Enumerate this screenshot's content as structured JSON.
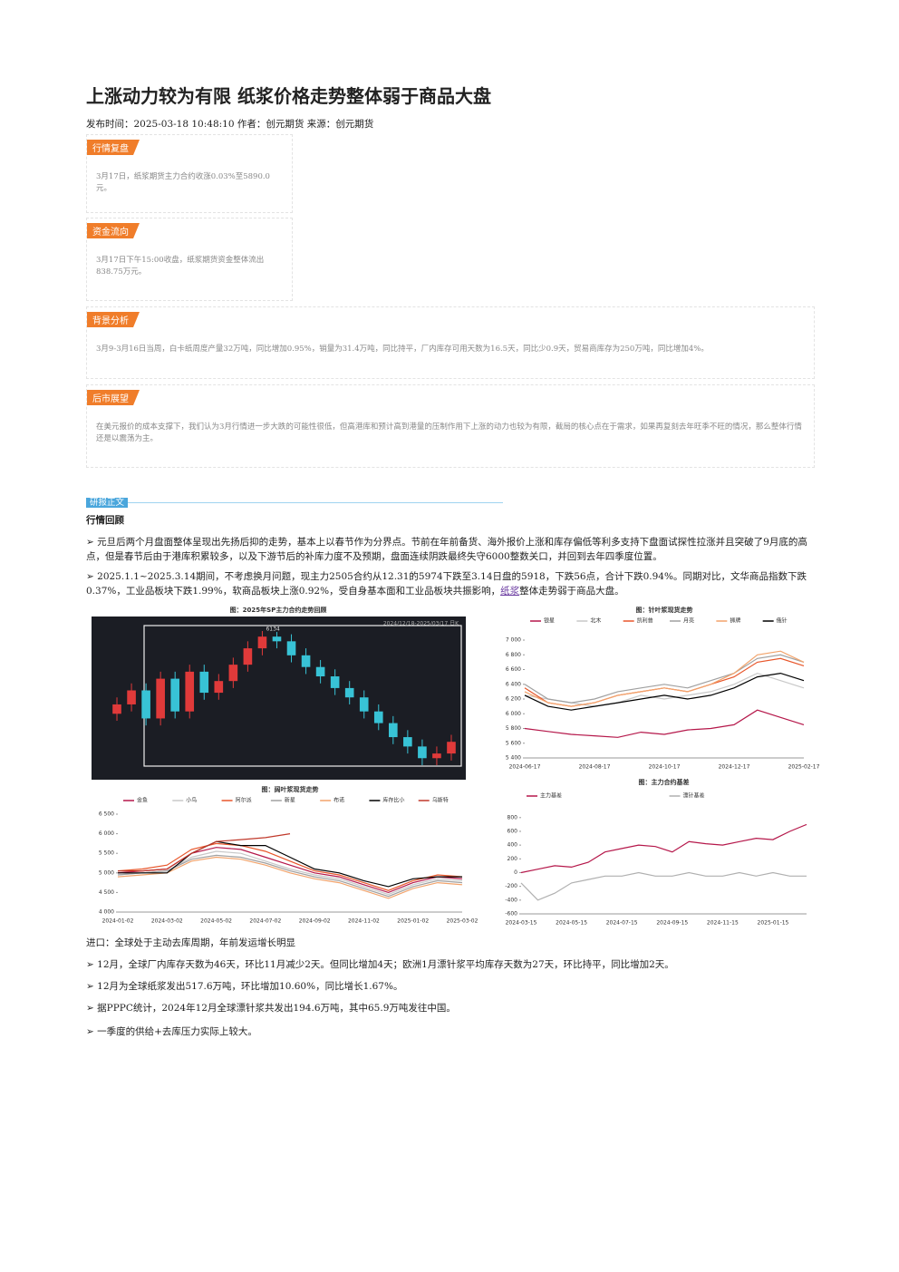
{
  "header": {
    "title": "上涨动力较为有限 纸浆价格走势整体弱于商品大盘",
    "meta": "发布时间：2025-03-18 10:48:10 作者：创元期货 来源：创元期货"
  },
  "sections": [
    {
      "tag": "行情复盘",
      "text": "3月17日，纸浆期货主力合约收涨0.03%至5890.0元。"
    },
    {
      "tag": "资金流向",
      "text": "3月17日下午15:00收盘，纸浆期货资金整体流出838.75万元。"
    },
    {
      "tag": "背景分析",
      "text": "3月9-3月16日当周，白卡纸周度产量32万吨，同比增加0.95%，销量为31.4万吨，同比持平，厂内库存可用天数为16.5天，同比少0.9天，贸易商库存为250万吨，同比增加4%。"
    },
    {
      "tag": "后市展望",
      "text": "在美元报价的成本支撑下，我们认为3月行情进一步大跌的可能性很低，但高港库和预计高到港量的压制作用下上涨的动力也较为有限，截局的核心点在于需求，如果再复刻去年旺季不旺的情况，那么整体行情还是以震荡为主。"
    }
  ],
  "body": {
    "tag": "研报正文",
    "heading": "行情回顾",
    "p1": "➢ 元旦后两个月盘面整体呈现出先扬后抑的走势，基本上以春节作为分界点。节前在年前备货、海外报价上涨和库存偏低等利多支持下盘面试探性拉涨并且突破了9月底的高点，但是春节后由于港库积累较多，以及下游节后的补库力度不及预期，盘面连续阴跌最终失守6000整数关口，并回到去年四季度位置。",
    "p2_before": "➢ 2025.1.1~2025.3.14期间，不考虑换月问题，现主力2505合约从12.31的5974下跌至3.14日盘的5918，下跌56点，合计下跌0.94%。同期对比，文华商品指数下跌0.37%，工业品板块下跌1.99%，软商品板块上涨0.92%，受自身基本面和工业品板块共振影响，",
    "p2_link": "纸浆",
    "p2_after": "整体走势弱于商品大盘。"
  },
  "chart_data": [
    {
      "type": "candlestick",
      "title": "图：2025年SP主力合约走势回顾",
      "subtitle": "2024/12/18-2025/03/17 日K",
      "annotation": "6134",
      "open": [
        5780,
        5820,
        5880,
        5760,
        5930,
        5790,
        5960,
        5870,
        5920,
        5990,
        6060,
        6110,
        6090,
        6030,
        5980,
        5940,
        5890,
        5850,
        5790,
        5740,
        5680,
        5640,
        5590,
        5610
      ],
      "high": [
        5850,
        5910,
        5910,
        5960,
        5960,
        5990,
        5990,
        5950,
        6020,
        6090,
        6134,
        6130,
        6120,
        6060,
        6010,
        5970,
        5920,
        5880,
        5820,
        5770,
        5710,
        5670,
        5640,
        5690
      ],
      "low": [
        5750,
        5790,
        5730,
        5730,
        5760,
        5760,
        5840,
        5840,
        5890,
        5960,
        6030,
        6060,
        6000,
        5950,
        5910,
        5860,
        5820,
        5760,
        5710,
        5650,
        5610,
        5560,
        5560,
        5580
      ],
      "close": [
        5820,
        5880,
        5760,
        5930,
        5790,
        5960,
        5870,
        5920,
        5990,
        6060,
        6110,
        6090,
        6030,
        5980,
        5940,
        5890,
        5850,
        5790,
        5740,
        5680,
        5640,
        5590,
        5610,
        5660
      ]
    },
    {
      "type": "line",
      "title": "图：针叶浆现货走势",
      "categories": [
        "2024-06-17",
        null,
        null,
        "2024-08-17",
        null,
        null,
        "2024-10-17",
        null,
        null,
        "2024-12-17",
        null,
        null,
        "2025-02-17"
      ],
      "ylim": [
        5400,
        7000
      ],
      "yticks": [
        {
          "value": 5400,
          "label": "5 400"
        },
        {
          "value": 5600,
          "label": "5 600"
        },
        {
          "value": 5800,
          "label": "5 800"
        },
        {
          "value": 6000,
          "label": "6 000"
        },
        {
          "value": 6200,
          "label": "6 200"
        },
        {
          "value": 6400,
          "label": "6 400"
        },
        {
          "value": 6600,
          "label": "6 600"
        },
        {
          "value": 6800,
          "label": "6 800"
        },
        {
          "value": 7000,
          "label": "7 000"
        }
      ],
      "series": [
        {
          "name": "银星",
          "color": "#b5174a",
          "values": [
            5800,
            5760,
            5720,
            5700,
            5680,
            5750,
            5720,
            5780,
            5800,
            5850,
            6050,
            5950,
            5850
          ]
        },
        {
          "name": "北木",
          "color": "#c8c8c8",
          "values": [
            6250,
            6200,
            6150,
            6100,
            6150,
            6250,
            6200,
            6250,
            6300,
            6400,
            6550,
            6450,
            6350
          ]
        },
        {
          "name": "凯利普",
          "color": "#e8562a",
          "values": [
            6350,
            6150,
            6100,
            6150,
            6250,
            6300,
            6350,
            6300,
            6400,
            6500,
            6700,
            6750,
            6650
          ]
        },
        {
          "name": "月亮",
          "color": "#a0a0a0",
          "values": [
            6400,
            6200,
            6150,
            6200,
            6300,
            6350,
            6400,
            6350,
            6450,
            6550,
            6750,
            6800,
            6700
          ]
        },
        {
          "name": "狮牌",
          "color": "#f2a36b",
          "values": [
            6300,
            6150,
            6100,
            6150,
            6250,
            6300,
            6350,
            6300,
            6400,
            6550,
            6800,
            6850,
            6700
          ]
        },
        {
          "name": "俄针",
          "color": "#000000",
          "values": [
            6250,
            6100,
            6050,
            6100,
            6150,
            6200,
            6250,
            6200,
            6250,
            6350,
            6500,
            6550,
            6450
          ]
        }
      ]
    },
    {
      "type": "line",
      "title": "图：阔叶浆现货走势",
      "categories": [
        "2024-01-02",
        null,
        "2024-03-02",
        null,
        "2024-05-02",
        null,
        "2024-07-02",
        null,
        "2024-09-02",
        null,
        "2024-11-02",
        null,
        "2025-01-02",
        null,
        "2025-03-02"
      ],
      "ylim": [
        4000,
        6500
      ],
      "yticks": [
        {
          "value": 4000,
          "label": "4 000"
        },
        {
          "value": 4500,
          "label": "4 500"
        },
        {
          "value": 5000,
          "label": "5 000"
        },
        {
          "value": 5500,
          "label": "5 500"
        },
        {
          "value": 6000,
          "label": "6 000"
        },
        {
          "value": 6500,
          "label": "6 500"
        }
      ],
      "series": [
        {
          "name": "金鱼",
          "color": "#b5174a",
          "values": [
            5000,
            5050,
            5100,
            5500,
            5650,
            5600,
            5400,
            5200,
            5000,
            4900,
            4700,
            4500,
            4750,
            4900,
            4850
          ]
        },
        {
          "name": "小鸟",
          "color": "#c8c8c8",
          "values": [
            4950,
            5000,
            5050,
            5400,
            5550,
            5500,
            5300,
            5100,
            4950,
            4850,
            4650,
            4450,
            4700,
            4850,
            4800
          ]
        },
        {
          "name": "阿尔派",
          "color": "#e8562a",
          "values": [
            5050,
            5100,
            5200,
            5600,
            5750,
            5700,
            5550,
            5300,
            5050,
            4950,
            4750,
            4550,
            4800,
            4950,
            4900
          ]
        },
        {
          "name": "新星",
          "color": "#a0a0a0",
          "values": [
            4950,
            5000,
            5050,
            5350,
            5450,
            5400,
            5250,
            5050,
            4900,
            4800,
            4600,
            4400,
            4650,
            4800,
            4750
          ]
        },
        {
          "name": "布诺",
          "color": "#f2a36b",
          "values": [
            4900,
            4950,
            5000,
            5300,
            5400,
            5350,
            5200,
            5000,
            4850,
            4750,
            4550,
            4350,
            4600,
            4750,
            4700
          ]
        },
        {
          "name": "库存比小",
          "color": "#000000",
          "values": [
            5000,
            5000,
            5000,
            5500,
            5800,
            5700,
            5700,
            5400,
            5100,
            5000,
            4800,
            4650,
            4850,
            4900,
            4900
          ]
        },
        {
          "name": "乌斯特",
          "color": "#c0392b",
          "values": [
            5050,
            5050,
            5100,
            5500,
            5800,
            5850,
            5900,
            6000,
            null,
            null,
            null,
            null,
            null,
            null,
            null
          ]
        }
      ]
    },
    {
      "type": "line",
      "title": "图：主力合约基差",
      "categories": [
        "2024-03-15",
        null,
        null,
        "2024-05-15",
        null,
        null,
        "2024-07-15",
        null,
        null,
        "2024-09-15",
        null,
        null,
        "2024-11-15",
        null,
        null,
        "2025-01-15",
        null,
        null
      ],
      "ylim": [
        -600,
        850
      ],
      "yticks": [
        -600,
        -400,
        -200,
        0,
        200,
        400,
        600,
        800
      ],
      "series": [
        {
          "name": "主力基差",
          "color": "#b5174a",
          "values": [
            0,
            50,
            100,
            80,
            150,
            300,
            350,
            400,
            380,
            300,
            450,
            420,
            400,
            450,
            500,
            480,
            600,
            700
          ]
        },
        {
          "name": "漂针基差",
          "color": "#b0b0b0",
          "values": [
            -150,
            -400,
            -300,
            -150,
            -100,
            -50,
            -50,
            0,
            -50,
            -50,
            0,
            -50,
            -50,
            0,
            -50,
            0,
            -50,
            -50
          ]
        }
      ]
    }
  ],
  "import": {
    "heading": "进口：全球处于主动去库周期，年前发运增长明显",
    "bullets": [
      "➢ 12月，全球厂内库存天数为46天，环比11月减少2天。但同比增加4天；欧洲1月漂针浆平均库存天数为27天，环比持平，同比增加2天。",
      "➢ 12月为全球纸浆发出517.6万吨，环比增加10.60%，同比增长1.67%。",
      "➢ 据PPPC统计，2024年12月全球漂针浆共发出194.6万吨，其中65.9万吨发往中国。",
      "➢ 一季度的供给+去库压力实际上较大。"
    ]
  }
}
